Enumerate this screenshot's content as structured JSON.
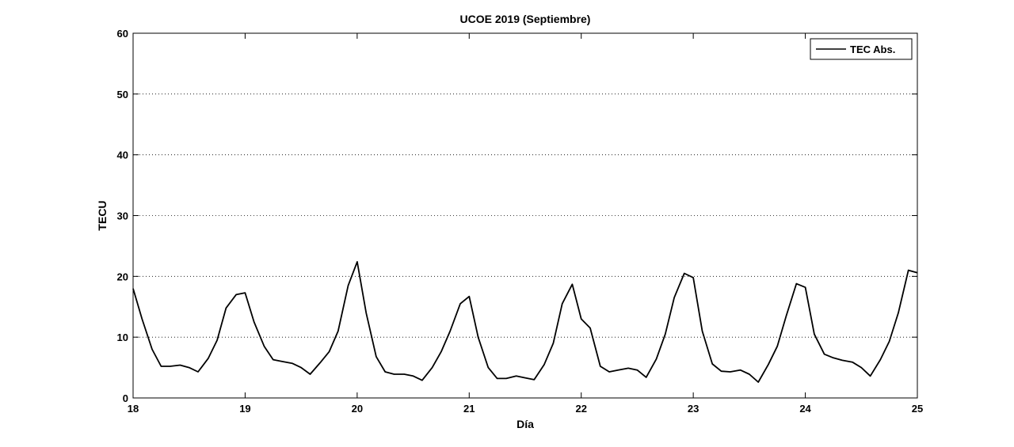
{
  "chart_data": {
    "type": "line",
    "title": "UCOE 2019 (Septiembre)",
    "xlabel": "Día",
    "ylabel": "TECU",
    "xlim": [
      18,
      25
    ],
    "ylim": [
      0,
      60
    ],
    "xticks": [
      "18",
      "19",
      "20",
      "21",
      "22",
      "23",
      "24",
      "25"
    ],
    "yticks": [
      "0",
      "10",
      "20",
      "30",
      "40",
      "50",
      "60"
    ],
    "grid": "horizontal-dotted",
    "legend_position": "top-right",
    "line_color": "#000000",
    "series": [
      {
        "name": "TEC Abs.",
        "x": [
          18.0,
          18.08,
          18.17,
          18.25,
          18.33,
          18.42,
          18.5,
          18.58,
          18.67,
          18.75,
          18.83,
          18.92,
          19.0,
          19.08,
          19.17,
          19.25,
          19.33,
          19.42,
          19.5,
          19.58,
          19.67,
          19.75,
          19.83,
          19.92,
          20.0,
          20.08,
          20.17,
          20.25,
          20.33,
          20.42,
          20.5,
          20.58,
          20.67,
          20.75,
          20.83,
          20.92,
          21.0,
          21.08,
          21.17,
          21.25,
          21.33,
          21.42,
          21.5,
          21.58,
          21.67,
          21.75,
          21.83,
          21.92,
          22.0,
          22.08,
          22.17,
          22.25,
          22.33,
          22.42,
          22.5,
          22.58,
          22.67,
          22.75,
          22.83,
          22.92,
          23.0,
          23.08,
          23.17,
          23.25,
          23.33,
          23.42,
          23.5,
          23.58,
          23.67,
          23.75,
          23.83,
          23.92,
          24.0,
          24.08,
          24.17,
          24.25,
          24.33,
          24.42,
          24.5,
          24.58,
          24.67,
          24.75,
          24.83,
          24.92,
          25.0
        ],
        "values": [
          18,
          13,
          8,
          5.2,
          5.2,
          5.4,
          5,
          4.3,
          6.5,
          9.5,
          14.8,
          17,
          17.3,
          12.5,
          8.5,
          6.3,
          6,
          5.7,
          5,
          3.9,
          5.8,
          7.6,
          11,
          18.5,
          22.4,
          14,
          6.8,
          4.3,
          3.9,
          3.9,
          3.6,
          2.9,
          5,
          7.6,
          11,
          15.5,
          16.7,
          10,
          5,
          3.2,
          3.2,
          3.6,
          3.3,
          3,
          5.5,
          9,
          15.5,
          18.7,
          13,
          11.5,
          5.2,
          4.3,
          4.6,
          4.9,
          4.6,
          3.4,
          6.4,
          10.5,
          16.5,
          20.5,
          19.8,
          11,
          5.6,
          4.4,
          4.3,
          4.6,
          3.9,
          2.6,
          5.5,
          8.5,
          13.5,
          18.8,
          18.2,
          10.5,
          7.2,
          6.6,
          6.2,
          5.9,
          5,
          3.6,
          6.3,
          9.3,
          14,
          21,
          20.6
        ]
      }
    ]
  }
}
